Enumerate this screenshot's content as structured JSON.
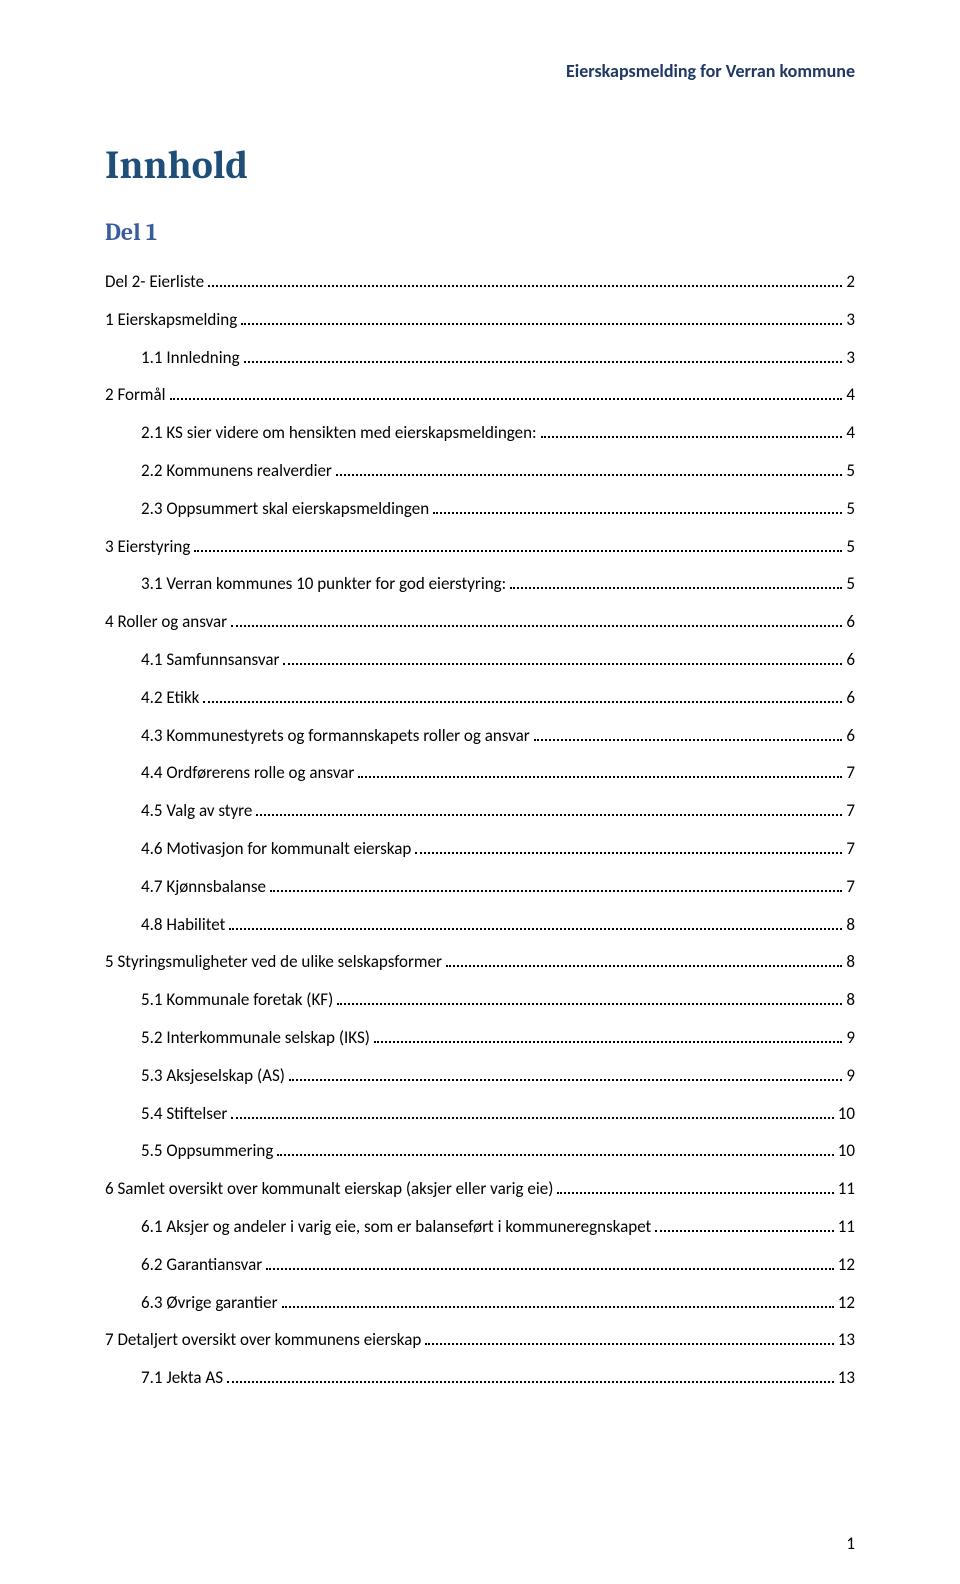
{
  "header": "Eierskapsmelding for Verran kommune",
  "title": "Innhold",
  "del_label": "Del 1",
  "page_number": "1",
  "toc": [
    {
      "label": "Del 2- Eierliste",
      "page": "2",
      "indent": 0
    },
    {
      "label": "1 Eierskapsmelding",
      "page": "3",
      "indent": 0
    },
    {
      "label": "1.1 Innledning",
      "page": "3",
      "indent": 1
    },
    {
      "label": "2 Formål",
      "page": "4",
      "indent": 0
    },
    {
      "label": "2.1 KS sier videre om hensikten med eierskapsmeldingen:",
      "page": "4",
      "indent": 1
    },
    {
      "label": "2.2 Kommunens realverdier",
      "page": "5",
      "indent": 1
    },
    {
      "label": "2.3 Oppsummert skal eierskapsmeldingen",
      "page": "5",
      "indent": 1
    },
    {
      "label": "3 Eierstyring",
      "page": "5",
      "indent": 0
    },
    {
      "label": "3.1 Verran kommunes 10 punkter for god eierstyring:",
      "page": "5",
      "indent": 1
    },
    {
      "label": "4 Roller og ansvar",
      "page": "6",
      "indent": 0
    },
    {
      "label": "4.1 Samfunnsansvar",
      "page": "6",
      "indent": 1
    },
    {
      "label": "4.2 Etikk",
      "page": "6",
      "indent": 1
    },
    {
      "label": "4.3 Kommunestyrets og formannskapets roller og ansvar",
      "page": "6",
      "indent": 1
    },
    {
      "label": "4.4 Ordførerens rolle og ansvar",
      "page": "7",
      "indent": 1
    },
    {
      "label": "4.5 Valg av styre",
      "page": "7",
      "indent": 1
    },
    {
      "label": "4.6 Motivasjon for kommunalt eierskap",
      "page": "7",
      "indent": 1
    },
    {
      "label": "4.7 Kjønnsbalanse",
      "page": "7",
      "indent": 1
    },
    {
      "label": "4.8 Habilitet",
      "page": "8",
      "indent": 1
    },
    {
      "label": "5 Styringsmuligheter ved de ulike selskapsformer",
      "page": "8",
      "indent": 0
    },
    {
      "label": "5.1 Kommunale foretak (KF)",
      "page": "8",
      "indent": 1
    },
    {
      "label": "5.2 Interkommunale selskap (IKS)",
      "page": "9",
      "indent": 1
    },
    {
      "label": "5.3 Aksjeselskap (AS)",
      "page": "9",
      "indent": 1
    },
    {
      "label": "5.4 Stiftelser",
      "page": "10",
      "indent": 1
    },
    {
      "label": "5.5 Oppsummering",
      "page": "10",
      "indent": 1
    },
    {
      "label": "6 Samlet oversikt over kommunalt eierskap (aksjer eller varig eie)",
      "page": "11",
      "indent": 0
    },
    {
      "label": "6.1 Aksjer og andeler i varig eie, som er balanseført i kommuneregnskapet",
      "page": "11",
      "indent": 1
    },
    {
      "label": "6.2 Garantiansvar",
      "page": "12",
      "indent": 1
    },
    {
      "label": "6.3 Øvrige garantier",
      "page": "12",
      "indent": 1
    },
    {
      "label": "7 Detaljert oversikt over kommunens eierskap",
      "page": "13",
      "indent": 0
    },
    {
      "label": "7.1 Jekta AS",
      "page": "13",
      "indent": 1
    }
  ]
}
